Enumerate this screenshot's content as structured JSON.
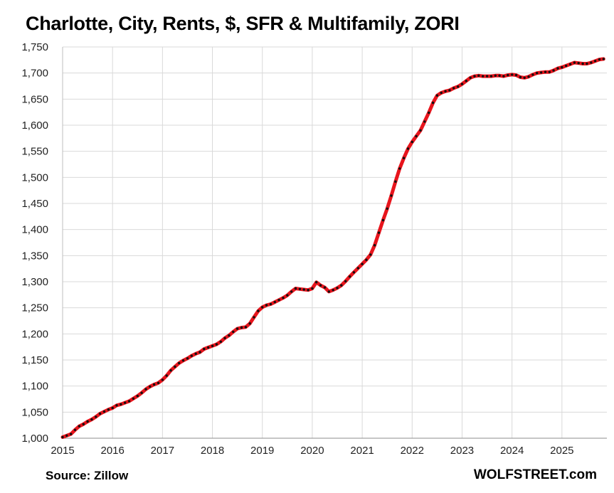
{
  "footer": {
    "source": "Source: Zillow",
    "brand": "WOLFSTREET.com"
  },
  "chart_data": {
    "type": "line",
    "title": "Charlotte, City, Rents, $, SFR & Multifamily, ZORI",
    "xlabel": "",
    "ylabel": "",
    "xlim": [
      2015,
      2025.9
    ],
    "ylim": [
      1000,
      1750
    ],
    "yticks": [
      1000,
      1050,
      1100,
      1150,
      1200,
      1250,
      1300,
      1350,
      1400,
      1450,
      1500,
      1550,
      1600,
      1650,
      1700,
      1750
    ],
    "ytick_labels": [
      "1,000",
      "1,050",
      "1,100",
      "1,150",
      "1,200",
      "1,250",
      "1,300",
      "1,350",
      "1,400",
      "1,450",
      "1,500",
      "1,550",
      "1,600",
      "1,650",
      "1,700",
      "1,750"
    ],
    "xticks": [
      2015,
      2016,
      2017,
      2018,
      2019,
      2020,
      2021,
      2022,
      2023,
      2024,
      2025
    ],
    "xtick_labels": [
      "2015",
      "2016",
      "2017",
      "2018",
      "2019",
      "2020",
      "2021",
      "2022",
      "2023",
      "2024",
      "2025"
    ],
    "grid": true,
    "legend": "none",
    "colors": {
      "line": "#e8141c",
      "marker": "#111111",
      "grid": "#d9d9d9"
    },
    "series": [
      {
        "x": [
          2015.0,
          2015.083,
          2015.167,
          2015.25,
          2015.333,
          2015.417,
          2015.5,
          2015.583,
          2015.667,
          2015.75,
          2015.833,
          2015.917,
          2016.0,
          2016.083,
          2016.167,
          2016.25,
          2016.333,
          2016.417,
          2016.5,
          2016.583,
          2016.667,
          2016.75,
          2016.833,
          2016.917,
          2017.0,
          2017.083,
          2017.167,
          2017.25,
          2017.333,
          2017.417,
          2017.5,
          2017.583,
          2017.667,
          2017.75,
          2017.833,
          2017.917,
          2018.0,
          2018.083,
          2018.167,
          2018.25,
          2018.333,
          2018.417,
          2018.5,
          2018.583,
          2018.667,
          2018.75,
          2018.833,
          2018.917,
          2019.0,
          2019.083,
          2019.167,
          2019.25,
          2019.333,
          2019.417,
          2019.5,
          2019.583,
          2019.667,
          2019.75,
          2019.833,
          2019.917,
          2020.0,
          2020.083,
          2020.167,
          2020.25,
          2020.333,
          2020.417,
          2020.5,
          2020.583,
          2020.667,
          2020.75,
          2020.833,
          2020.917,
          2021.0,
          2021.083,
          2021.167,
          2021.25,
          2021.333,
          2021.417,
          2021.5,
          2021.583,
          2021.667,
          2021.75,
          2021.833,
          2021.917,
          2022.0,
          2022.083,
          2022.167,
          2022.25,
          2022.333,
          2022.417,
          2022.5,
          2022.583,
          2022.667,
          2022.75,
          2022.833,
          2022.917,
          2023.0,
          2023.083,
          2023.167,
          2023.25,
          2023.333,
          2023.417,
          2023.5,
          2023.583,
          2023.667,
          2023.75,
          2023.833,
          2023.917,
          2024.0,
          2024.083,
          2024.167,
          2024.25,
          2024.333,
          2024.417,
          2024.5,
          2024.583,
          2024.667,
          2024.75,
          2024.833,
          2024.917,
          2025.0,
          2025.083,
          2025.167,
          2025.25,
          2025.333,
          2025.417,
          2025.5,
          2025.583,
          2025.667,
          2025.75,
          2025.833
        ],
        "y": [
          1002,
          1005,
          1008,
          1016,
          1023,
          1027,
          1032,
          1036,
          1041,
          1047,
          1051,
          1055,
          1058,
          1063,
          1065,
          1068,
          1071,
          1076,
          1081,
          1087,
          1094,
          1099,
          1103,
          1106,
          1112,
          1120,
          1130,
          1137,
          1144,
          1149,
          1153,
          1158,
          1162,
          1165,
          1171,
          1174,
          1177,
          1180,
          1185,
          1192,
          1197,
          1204,
          1210,
          1212,
          1213,
          1220,
          1232,
          1244,
          1251,
          1255,
          1257,
          1261,
          1265,
          1269,
          1274,
          1281,
          1287,
          1286,
          1285,
          1284,
          1287,
          1299,
          1293,
          1289,
          1281,
          1284,
          1288,
          1293,
          1301,
          1310,
          1318,
          1326,
          1334,
          1342,
          1352,
          1370,
          1394,
          1418,
          1440,
          1465,
          1492,
          1517,
          1537,
          1555,
          1568,
          1579,
          1590,
          1607,
          1624,
          1643,
          1657,
          1662,
          1665,
          1667,
          1671,
          1674,
          1679,
          1685,
          1691,
          1694,
          1695,
          1694,
          1694,
          1694,
          1695,
          1695,
          1694,
          1696,
          1697,
          1696,
          1692,
          1691,
          1693,
          1697,
          1700,
          1701,
          1702,
          1702,
          1705,
          1709,
          1711,
          1714,
          1717,
          1720,
          1719,
          1718,
          1718,
          1720,
          1723,
          1726,
          1727
        ]
      }
    ]
  }
}
